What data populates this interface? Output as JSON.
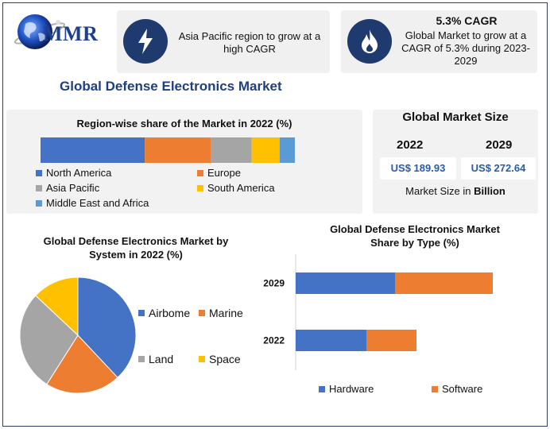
{
  "brand": {
    "logo_text": "MMR"
  },
  "cards": [
    {
      "icon": "lightning-icon",
      "text": "Asia Pacific region to grow at a high CAGR"
    },
    {
      "icon": "flame-icon",
      "title": "5.3% CAGR",
      "text": "Global Market to grow at a CAGR of 5.3% during 2023-2029"
    }
  ],
  "main_title": "Global Defense Electronics Market",
  "colors": {
    "blue": "#4472c4",
    "orange": "#ed7d31",
    "gray": "#a5a5a5",
    "yellow": "#ffc000",
    "lightblue": "#5b9bd5",
    "navy": "#1f3a6e"
  },
  "market_size": {
    "title": "Global Market Size",
    "year1": "2022",
    "year2": "2029",
    "value1": "US$ 189.93",
    "value2": "US$ 272.64",
    "note_prefix": "Market Size in",
    "note_unit": "Billion"
  },
  "chart_data": [
    {
      "type": "bar",
      "orientation": "horizontal-stacked-100",
      "title": "Region-wise share of the Market in 2022 (%)",
      "series": [
        {
          "name": "North America",
          "values": [
            41
          ]
        },
        {
          "name": "Europe",
          "values": [
            26
          ]
        },
        {
          "name": "Asia Pacific",
          "values": [
            16
          ]
        },
        {
          "name": "South America",
          "values": [
            11
          ]
        },
        {
          "name": "Middle East and Africa",
          "values": [
            6
          ]
        }
      ],
      "legend": "bottom"
    },
    {
      "type": "pie",
      "title": "Global Defense Electronics Market by System in 2022 (%)",
      "labels": [
        "Airborne",
        "Marine",
        "Land",
        "Space"
      ],
      "legend_labels": [
        "Airbome",
        "Marine",
        "Land",
        "Space"
      ],
      "values": [
        38,
        21,
        28,
        13
      ],
      "legend": "right"
    },
    {
      "type": "bar",
      "orientation": "horizontal-stacked",
      "title": "Global Defense Electronics Market Share by Type (%)",
      "categories": [
        "2029",
        "2022"
      ],
      "series": [
        {
          "name": "Hardware",
          "values": [
            125,
            89
          ]
        },
        {
          "name": "Software",
          "values": [
            123,
            63
          ]
        }
      ],
      "legend": "bottom"
    }
  ]
}
